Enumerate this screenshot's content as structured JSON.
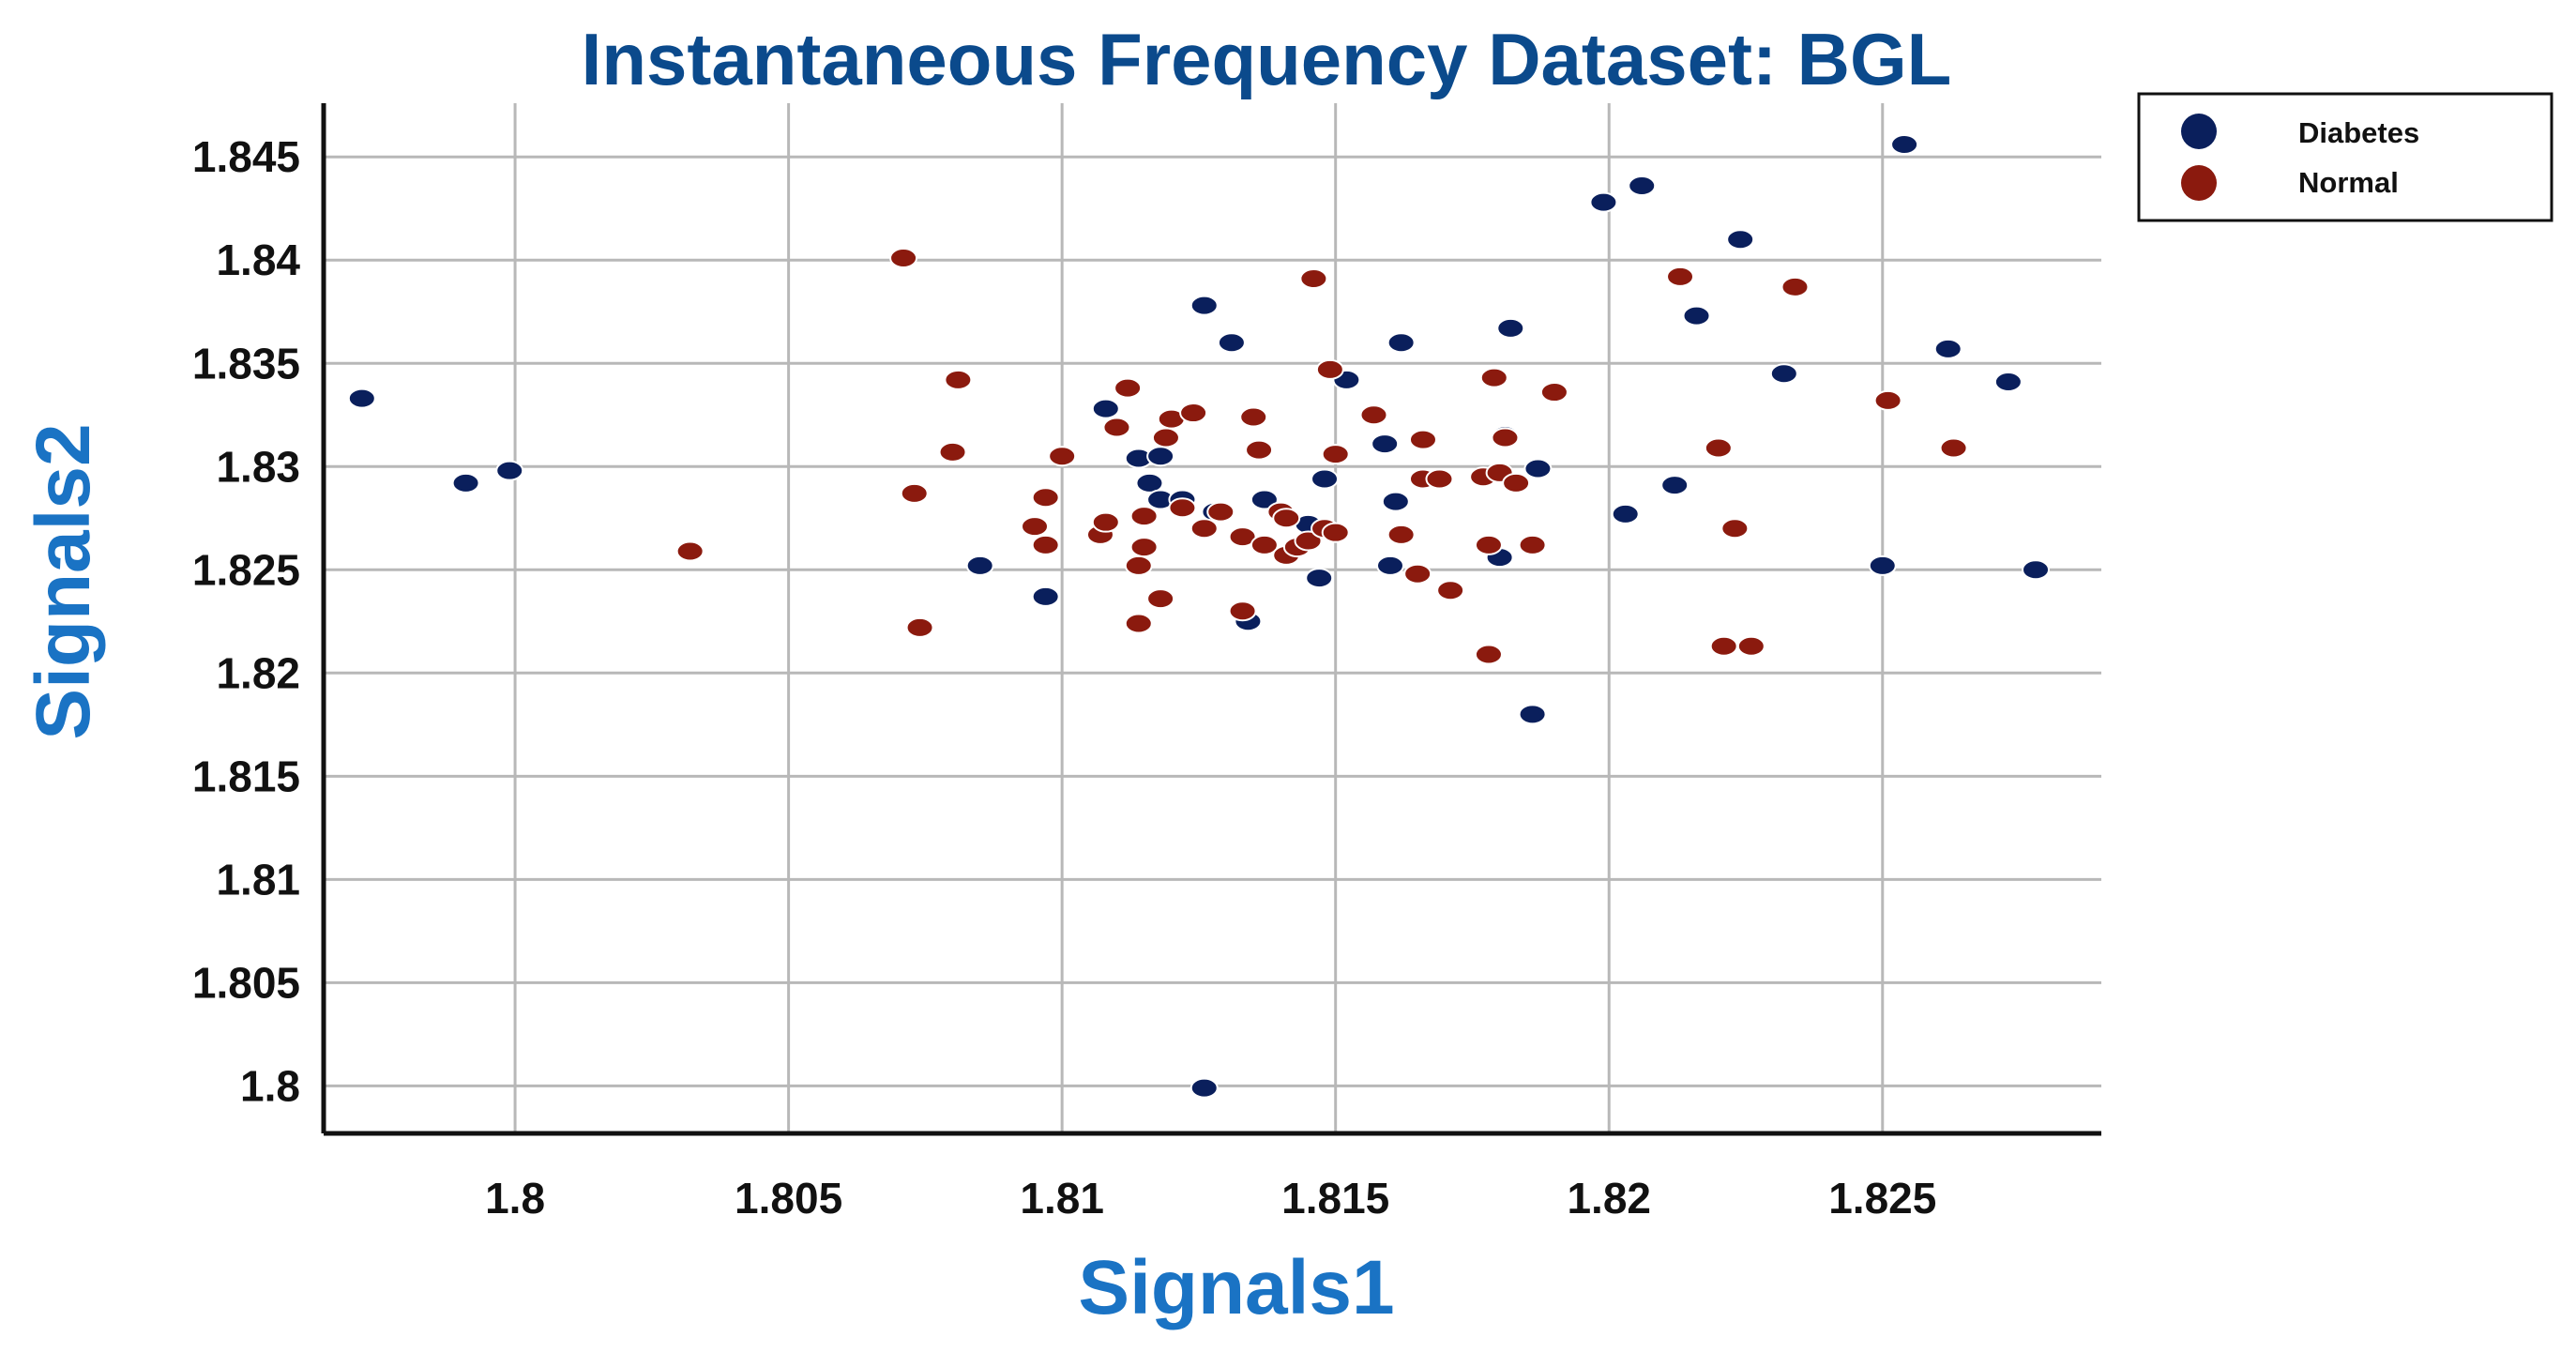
{
  "chart_data": {
    "type": "scatter",
    "title": "Instantaneous Frequency Dataset: BGL",
    "xlabel": "Signals1",
    "ylabel": "Signals2",
    "xlim": [
      1.7965,
      1.829
    ],
    "ylim": [
      1.7977,
      1.8476
    ],
    "xticks": [
      1.8,
      1.805,
      1.81,
      1.815,
      1.82,
      1.825
    ],
    "xtick_labels": [
      "1.8",
      "1.805",
      "1.81",
      "1.815",
      "1.82",
      "1.825"
    ],
    "yticks": [
      1.8,
      1.805,
      1.81,
      1.815,
      1.82,
      1.825,
      1.83,
      1.835,
      1.84,
      1.845
    ],
    "ytick_labels": [
      "1.8",
      "1.805",
      "1.81",
      "1.815",
      "1.82",
      "1.825",
      "1.83",
      "1.835",
      "1.84",
      "1.845"
    ],
    "grid": true,
    "legend_position": "top-right outside",
    "series": [
      {
        "name": "Diabetes",
        "color": "#0a1f5c",
        "points": [
          [
            1.7972,
            1.8333
          ],
          [
            1.7991,
            1.8292
          ],
          [
            1.7999,
            1.8298
          ],
          [
            1.8085,
            1.8252
          ],
          [
            1.8097,
            1.8237
          ],
          [
            1.8108,
            1.8328
          ],
          [
            1.8114,
            1.8304
          ],
          [
            1.8116,
            1.8292
          ],
          [
            1.8118,
            1.8284
          ],
          [
            1.8118,
            1.8305
          ],
          [
            1.8122,
            1.8284
          ],
          [
            1.8126,
            1.8378
          ],
          [
            1.8128,
            1.8278
          ],
          [
            1.8131,
            1.836
          ],
          [
            1.8134,
            1.8225
          ],
          [
            1.8137,
            1.8284
          ],
          [
            1.8145,
            1.8272
          ],
          [
            1.8147,
            1.8246
          ],
          [
            1.8148,
            1.8294
          ],
          [
            1.8152,
            1.8342
          ],
          [
            1.8159,
            1.8311
          ],
          [
            1.816,
            1.8252
          ],
          [
            1.8161,
            1.8283
          ],
          [
            1.8162,
            1.836
          ],
          [
            1.818,
            1.8256
          ],
          [
            1.8181,
            1.8315
          ],
          [
            1.8182,
            1.8367
          ],
          [
            1.8186,
            1.818
          ],
          [
            1.8187,
            1.8299
          ],
          [
            1.8199,
            1.8428
          ],
          [
            1.8203,
            1.8277
          ],
          [
            1.8206,
            1.8436
          ],
          [
            1.8212,
            1.8291
          ],
          [
            1.8216,
            1.8373
          ],
          [
            1.8224,
            1.841
          ],
          [
            1.8232,
            1.8345
          ],
          [
            1.825,
            1.8252
          ],
          [
            1.8254,
            1.8456
          ],
          [
            1.8262,
            1.8357
          ],
          [
            1.8273,
            1.8341
          ],
          [
            1.8278,
            1.825
          ],
          [
            1.8126,
            1.7999
          ]
        ]
      },
      {
        "name": "Normal",
        "color": "#8b1a0e",
        "points": [
          [
            1.8032,
            1.8259
          ],
          [
            1.8071,
            1.8401
          ],
          [
            1.8073,
            1.8287
          ],
          [
            1.8074,
            1.8222
          ],
          [
            1.808,
            1.8307
          ],
          [
            1.8081,
            1.8342
          ],
          [
            1.8095,
            1.8271
          ],
          [
            1.8097,
            1.8285
          ],
          [
            1.8097,
            1.8262
          ],
          [
            1.81,
            1.8305
          ],
          [
            1.8107,
            1.8267
          ],
          [
            1.8108,
            1.8273
          ],
          [
            1.811,
            1.8319
          ],
          [
            1.8112,
            1.8338
          ],
          [
            1.8114,
            1.8252
          ],
          [
            1.8114,
            1.8224
          ],
          [
            1.8115,
            1.8261
          ],
          [
            1.8115,
            1.8276
          ],
          [
            1.8118,
            1.8236
          ],
          [
            1.8119,
            1.8314
          ],
          [
            1.812,
            1.8323
          ],
          [
            1.8122,
            1.828
          ],
          [
            1.8124,
            1.8326
          ],
          [
            1.8126,
            1.827
          ],
          [
            1.8129,
            1.8278
          ],
          [
            1.8133,
            1.823
          ],
          [
            1.8133,
            1.8266
          ],
          [
            1.8135,
            1.8324
          ],
          [
            1.8136,
            1.8308
          ],
          [
            1.8137,
            1.8262
          ],
          [
            1.814,
            1.8278
          ],
          [
            1.8141,
            1.8275
          ],
          [
            1.8141,
            1.8257
          ],
          [
            1.8143,
            1.8261
          ],
          [
            1.8145,
            1.8264
          ],
          [
            1.8146,
            1.8391
          ],
          [
            1.8148,
            1.827
          ],
          [
            1.8149,
            1.8347
          ],
          [
            1.815,
            1.8306
          ],
          [
            1.815,
            1.8268
          ],
          [
            1.8157,
            1.8325
          ],
          [
            1.8162,
            1.8267
          ],
          [
            1.8165,
            1.8248
          ],
          [
            1.8166,
            1.8294
          ],
          [
            1.8166,
            1.8313
          ],
          [
            1.8169,
            1.8294
          ],
          [
            1.8171,
            1.824
          ],
          [
            1.8177,
            1.8295
          ],
          [
            1.8178,
            1.8262
          ],
          [
            1.8178,
            1.8209
          ],
          [
            1.8179,
            1.8343
          ],
          [
            1.818,
            1.8297
          ],
          [
            1.8181,
            1.8314
          ],
          [
            1.8183,
            1.8292
          ],
          [
            1.8186,
            1.8262
          ],
          [
            1.819,
            1.8336
          ],
          [
            1.8213,
            1.8392
          ],
          [
            1.822,
            1.8309
          ],
          [
            1.8221,
            1.8213
          ],
          [
            1.8223,
            1.827
          ],
          [
            1.8226,
            1.8213
          ],
          [
            1.8234,
            1.8387
          ],
          [
            1.8251,
            1.8332
          ],
          [
            1.8263,
            1.8309
          ]
        ]
      }
    ]
  }
}
